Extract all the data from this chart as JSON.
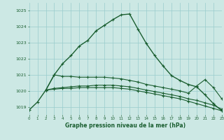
{
  "background_color": "#cce8e4",
  "grid_color": "#99cccc",
  "line_color": "#1a5e30",
  "title": "Graphe pression niveau de la mer (hPa)",
  "xlim": [
    0,
    23
  ],
  "ylim": [
    1018.5,
    1025.5
  ],
  "yticks": [
    1019,
    1020,
    1021,
    1022,
    1023,
    1024,
    1025
  ],
  "xticks": [
    0,
    1,
    2,
    3,
    4,
    5,
    6,
    7,
    8,
    9,
    10,
    11,
    12,
    13,
    14,
    15,
    16,
    17,
    18,
    19,
    20,
    21,
    22,
    23
  ],
  "series": [
    {
      "x": [
        0,
        1,
        2,
        3,
        4,
        5,
        6,
        7,
        8,
        9,
        10,
        11,
        12,
        13,
        14,
        15,
        16,
        17,
        18,
        19,
        20,
        21,
        22,
        23
      ],
      "y": [
        1018.8,
        1019.3,
        1020.05,
        1021.0,
        1021.7,
        1022.2,
        1022.8,
        1023.15,
        1023.75,
        1024.1,
        1024.45,
        1024.75,
        1024.8,
        1023.85,
        1022.95,
        1022.2,
        1021.55,
        1020.95,
        1020.65,
        1020.4,
        1020.25,
        1019.75,
        1019.2,
        1018.75
      ],
      "style": "-",
      "marker": "+",
      "lw": 1.0,
      "ms": 3.5
    },
    {
      "x": [
        2,
        3,
        4,
        5,
        6,
        7,
        8,
        9,
        10,
        11,
        12,
        13,
        14,
        15,
        16,
        17,
        18,
        19,
        20,
        21,
        22,
        23
      ],
      "y": [
        1020.05,
        1021.0,
        1020.9,
        1020.9,
        1020.85,
        1020.85,
        1020.85,
        1020.85,
        1020.8,
        1020.75,
        1020.65,
        1020.55,
        1020.4,
        1020.3,
        1020.2,
        1020.1,
        1020.0,
        1019.85,
        1020.3,
        1020.7,
        1020.2,
        1019.5
      ],
      "style": "-",
      "marker": "+",
      "lw": 0.8,
      "ms": 3.0
    },
    {
      "x": [
        2,
        3,
        4,
        5,
        6,
        7,
        8,
        9,
        10,
        11,
        12,
        13,
        14,
        15,
        16,
        17,
        18,
        19,
        20,
        21,
        22,
        23
      ],
      "y": [
        1020.05,
        1020.15,
        1020.2,
        1020.25,
        1020.3,
        1020.3,
        1020.35,
        1020.35,
        1020.35,
        1020.3,
        1020.25,
        1020.15,
        1020.05,
        1019.95,
        1019.85,
        1019.75,
        1019.65,
        1019.5,
        1019.4,
        1019.25,
        1019.1,
        1018.85
      ],
      "style": "-",
      "marker": "+",
      "lw": 0.8,
      "ms": 3.0
    },
    {
      "x": [
        2,
        3,
        4,
        5,
        6,
        7,
        8,
        9,
        10,
        11,
        12,
        13,
        14,
        15,
        16,
        17,
        18,
        19,
        20,
        21,
        22,
        23
      ],
      "y": [
        1020.05,
        1020.1,
        1020.15,
        1020.15,
        1020.2,
        1020.2,
        1020.2,
        1020.2,
        1020.2,
        1020.15,
        1020.1,
        1020.0,
        1019.9,
        1019.8,
        1019.7,
        1019.6,
        1019.5,
        1019.35,
        1019.2,
        1019.05,
        1018.9,
        1018.75
      ],
      "style": "-",
      "marker": "+",
      "lw": 0.8,
      "ms": 3.0
    }
  ]
}
